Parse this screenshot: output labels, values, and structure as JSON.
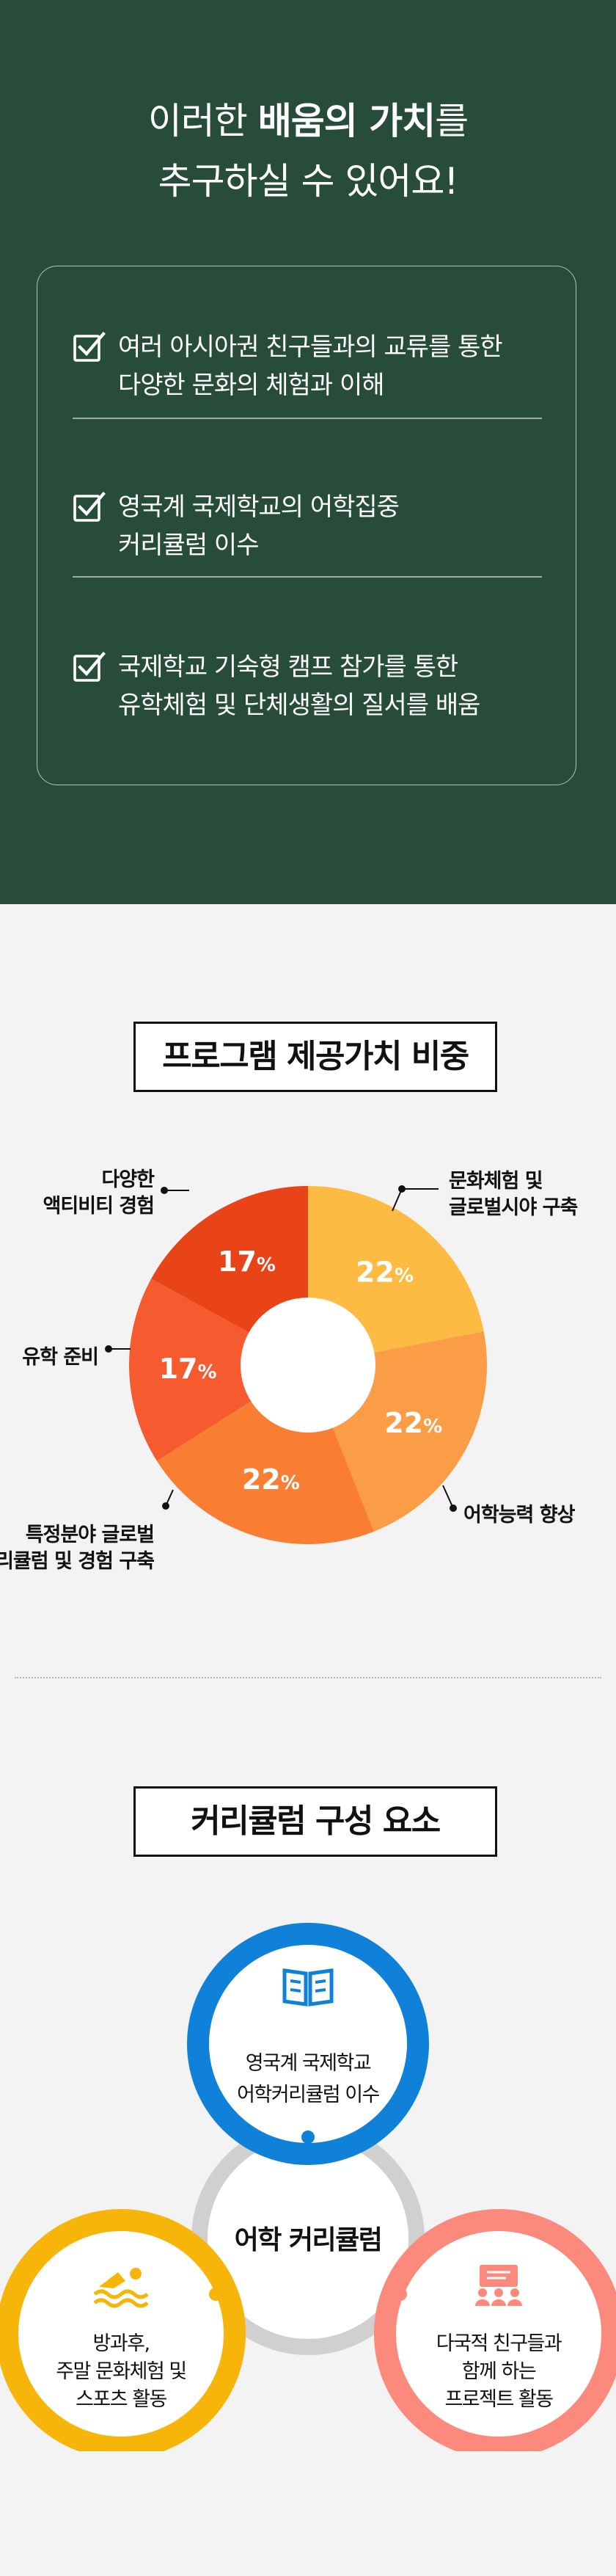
{
  "values": {
    "heading": {
      "line1_pre": "이러한 ",
      "line1_bold": "배움의 가치",
      "line1_post": "를",
      "line2": "추구하실 수 있어요!"
    },
    "items": [
      {
        "line1": "여러 아시아권 친구들과의 교류를 통한",
        "line2": "다양한 문화의 체험과 이해"
      },
      {
        "line1": "영국계 국제학교의 어학집중",
        "line2": "커리큘럼 이수"
      },
      {
        "line1": "국제학교 기숙형 캠프 참가를 통한",
        "line2": "유학체험 및 단체생활의 질서를 배움"
      }
    ],
    "check_icon": "checkbox-check-icon"
  },
  "pie_section": {
    "title": "프로그램 제공가치 비중"
  },
  "chart_data": {
    "type": "pie",
    "title": "프로그램 제공가치 비중",
    "unit": "%",
    "slices": [
      {
        "label": [
          "문화체험 및",
          "글로벌시야 구축"
        ],
        "value": 22,
        "color": "#fdbb43"
      },
      {
        "label": [
          "어학능력 향상"
        ],
        "value": 22,
        "color": "#fb9d47"
      },
      {
        "label": [
          "특정분야 글로벌",
          "커리큘럼 및 경험 구축"
        ],
        "value": 22,
        "color": "#f97d33"
      },
      {
        "label": [
          "유학 준비"
        ],
        "value": 17,
        "color": "#f65b30"
      },
      {
        "label": [
          "다양한",
          "액티비티 경험"
        ],
        "value": 17,
        "color": "#e84418"
      }
    ]
  },
  "curriculum": {
    "title": "커리큘럼 구성 요소",
    "center": "어학 커리큘럼",
    "items": [
      {
        "icon": "open-book-icon",
        "lines": [
          "영국계 국제학교",
          "어학커리큘럼 이수"
        ],
        "color": "#1081d8"
      },
      {
        "icon": "swimmer-icon",
        "lines": [
          "방과후,",
          "주말 문화체험 및",
          "스포츠 활동"
        ],
        "color": "#f6b508"
      },
      {
        "icon": "presentation-group-icon",
        "lines": [
          "다국적 친구들과",
          "함께 하는",
          "프로젝트 활동"
        ],
        "color": "#fb8a7d"
      }
    ]
  }
}
